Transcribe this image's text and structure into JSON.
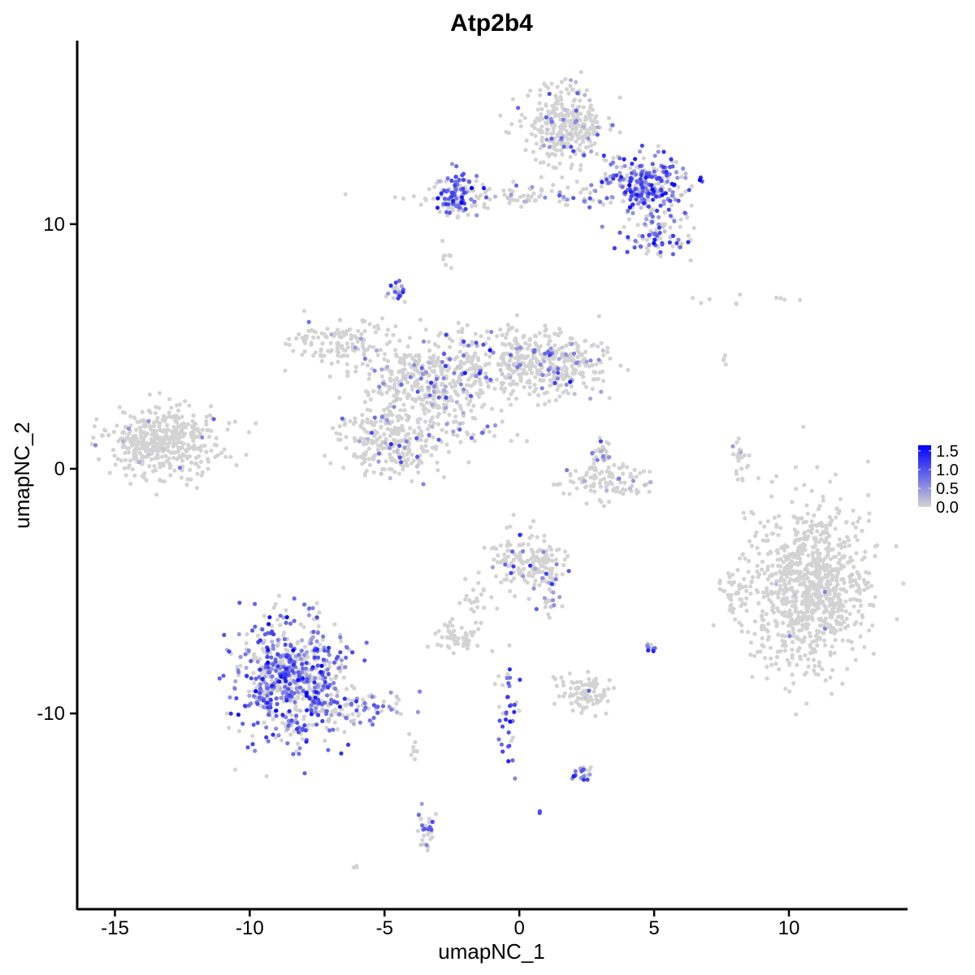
{
  "chart_data": {
    "type": "scatter",
    "title": "Atp2b4",
    "xlabel": "umapNC_1",
    "ylabel": "umapNC_2",
    "xlim": [
      -16.4,
      14.4
    ],
    "ylim": [
      -18.0,
      17.5
    ],
    "x_ticks": [
      -15,
      -10,
      -5,
      0,
      5,
      10
    ],
    "x_tick_labels": [
      "-15",
      "-10",
      "-5",
      "0",
      "5",
      "10"
    ],
    "y_ticks": [
      -10,
      0,
      10
    ],
    "y_tick_labels": [
      "-10",
      "0",
      "10"
    ],
    "grid": false,
    "legend": {
      "placement": "right",
      "type": "colorbar",
      "min": 0.0,
      "max": 1.65,
      "tick_values": [
        0.0,
        0.5,
        1.0,
        1.5
      ],
      "tick_labels": [
        "0.0",
        "0.5",
        "1.0",
        "1.5"
      ],
      "colors": [
        "#d3d3d3",
        "#0000ff"
      ]
    },
    "clusters": [
      {
        "cx": -13.2,
        "cy": 1.2,
        "sx": 1.05,
        "sy": 0.7,
        "n": 420,
        "expr_frac": 0.02,
        "expr_mean": 0.5
      },
      {
        "cx": 10.8,
        "cy": -4.9,
        "sx": 1.1,
        "sy": 1.7,
        "n": 900,
        "expr_frac": 0.005,
        "expr_mean": 0.4
      },
      {
        "cx": 8.0,
        "cy": -5.1,
        "sx": 0.25,
        "sy": 0.5,
        "n": 40,
        "expr_frac": 0.0,
        "expr_mean": 0.0
      },
      {
        "cx": -8.5,
        "cy": -8.6,
        "sx": 1.0,
        "sy": 1.2,
        "n": 700,
        "expr_frac": 0.6,
        "expr_mean": 0.8
      },
      {
        "cx": -6.0,
        "cy": -9.8,
        "sx": 1.0,
        "sy": 0.35,
        "n": 80,
        "expr_frac": 0.5,
        "expr_mean": 0.7
      },
      {
        "cx": 1.7,
        "cy": 14.0,
        "sx": 0.7,
        "sy": 0.9,
        "n": 320,
        "expr_frac": 0.12,
        "expr_mean": 0.6
      },
      {
        "cx": 4.7,
        "cy": 11.6,
        "sx": 0.8,
        "sy": 0.6,
        "n": 260,
        "expr_frac": 0.65,
        "expr_mean": 0.9
      },
      {
        "cx": 5.2,
        "cy": 9.6,
        "sx": 0.6,
        "sy": 0.5,
        "n": 90,
        "expr_frac": 0.55,
        "expr_mean": 0.8
      },
      {
        "cx": -2.4,
        "cy": 11.3,
        "sx": 0.35,
        "sy": 0.45,
        "n": 100,
        "expr_frac": 0.6,
        "expr_mean": 0.8
      },
      {
        "cx": 0.0,
        "cy": 11.1,
        "sx": 2.0,
        "sy": 0.25,
        "n": 120,
        "expr_frac": 0.3,
        "expr_mean": 0.7
      },
      {
        "cx": -2.7,
        "cy": 8.6,
        "sx": 0.1,
        "sy": 0.4,
        "n": 8,
        "expr_frac": 0.0,
        "expr_mean": 0.0
      },
      {
        "cx": -4.5,
        "cy": 7.3,
        "sx": 0.2,
        "sy": 0.2,
        "n": 20,
        "expr_frac": 0.8,
        "expr_mean": 0.8
      },
      {
        "cx": -3.5,
        "cy": 3.5,
        "sx": 1.2,
        "sy": 0.9,
        "n": 420,
        "expr_frac": 0.15,
        "expr_mean": 0.6
      },
      {
        "cx": -6.6,
        "cy": 5.2,
        "sx": 0.8,
        "sy": 0.5,
        "n": 120,
        "expr_frac": 0.05,
        "expr_mean": 0.5
      },
      {
        "cx": -4.8,
        "cy": 1.1,
        "sx": 1.0,
        "sy": 0.7,
        "n": 260,
        "expr_frac": 0.12,
        "expr_mean": 0.6
      },
      {
        "cx": 0.0,
        "cy": 4.4,
        "sx": 1.2,
        "sy": 0.8,
        "n": 300,
        "expr_frac": 0.12,
        "expr_mean": 0.6
      },
      {
        "cx": 1.7,
        "cy": 4.2,
        "sx": 0.8,
        "sy": 0.5,
        "n": 150,
        "expr_frac": 0.15,
        "expr_mean": 0.6
      },
      {
        "cx": -1.6,
        "cy": 1.4,
        "sx": 0.8,
        "sy": 0.25,
        "n": 20,
        "expr_frac": 0.4,
        "expr_mean": 0.6
      },
      {
        "cx": 3.3,
        "cy": -0.5,
        "sx": 0.8,
        "sy": 0.35,
        "n": 100,
        "expr_frac": 0.05,
        "expr_mean": 0.5
      },
      {
        "cx": 3.0,
        "cy": 0.6,
        "sx": 0.25,
        "sy": 0.4,
        "n": 30,
        "expr_frac": 0.25,
        "expr_mean": 0.6
      },
      {
        "cx": 8.2,
        "cy": 0.4,
        "sx": 0.15,
        "sy": 0.5,
        "n": 25,
        "expr_frac": 0.1,
        "expr_mean": 0.6
      },
      {
        "cx": 0.2,
        "cy": -3.8,
        "sx": 0.7,
        "sy": 0.6,
        "n": 160,
        "expr_frac": 0.08,
        "expr_mean": 0.6
      },
      {
        "cx": -1.6,
        "cy": -5.5,
        "sx": 0.3,
        "sy": 0.6,
        "n": 25,
        "expr_frac": 0.0,
        "expr_mean": 0.0
      },
      {
        "cx": 1.1,
        "cy": -5.1,
        "sx": 0.3,
        "sy": 0.6,
        "n": 30,
        "expr_frac": 0.4,
        "expr_mean": 0.7
      },
      {
        "cx": -2.4,
        "cy": -6.9,
        "sx": 0.4,
        "sy": 0.25,
        "n": 60,
        "expr_frac": 0.0,
        "expr_mean": 0.0
      },
      {
        "cx": 2.4,
        "cy": -9.2,
        "sx": 0.45,
        "sy": 0.4,
        "n": 90,
        "expr_frac": 0.05,
        "expr_mean": 0.5
      },
      {
        "cx": 5.0,
        "cy": -7.3,
        "sx": 0.15,
        "sy": 0.15,
        "n": 10,
        "expr_frac": 0.6,
        "expr_mean": 0.7
      },
      {
        "cx": -0.4,
        "cy": -9.9,
        "sx": 0.2,
        "sy": 1.1,
        "n": 40,
        "expr_frac": 0.7,
        "expr_mean": 1.0
      },
      {
        "cx": 2.3,
        "cy": -12.4,
        "sx": 0.2,
        "sy": 0.2,
        "n": 20,
        "expr_frac": 0.6,
        "expr_mean": 0.8
      },
      {
        "cx": -3.4,
        "cy": -14.8,
        "sx": 0.2,
        "sy": 0.5,
        "n": 30,
        "expr_frac": 0.55,
        "expr_mean": 0.8
      },
      {
        "cx": -3.9,
        "cy": -11.5,
        "sx": 0.1,
        "sy": 0.3,
        "n": 8,
        "expr_frac": 0.0,
        "expr_mean": 0.0
      },
      {
        "cx": 9.0,
        "cy": 6.8,
        "sx": 1.1,
        "sy": 0.2,
        "n": 10,
        "expr_frac": 0.0,
        "expr_mean": 0.0
      },
      {
        "cx": 7.6,
        "cy": 4.6,
        "sx": 0.1,
        "sy": 0.15,
        "n": 4,
        "expr_frac": 0.0,
        "expr_mean": 0.0
      },
      {
        "cx": 0.7,
        "cy": -14.0,
        "sx": 0.1,
        "sy": 0.1,
        "n": 3,
        "expr_frac": 1.0,
        "expr_mean": 0.7
      },
      {
        "cx": -6.0,
        "cy": -16.2,
        "sx": 0.1,
        "sy": 0.1,
        "n": 3,
        "expr_frac": 0.0,
        "expr_mean": 0.0
      }
    ]
  }
}
